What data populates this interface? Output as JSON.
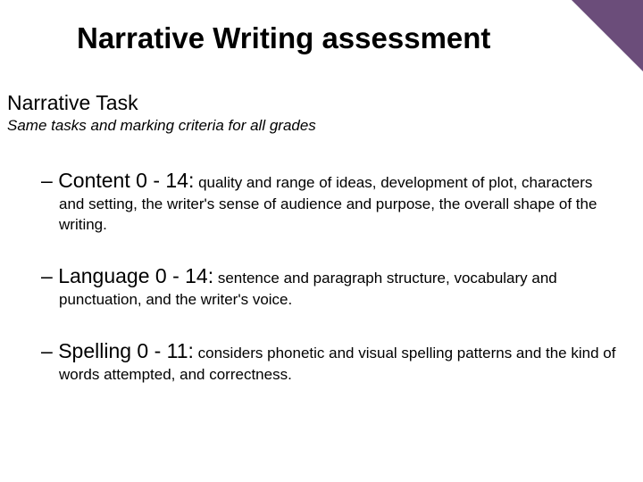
{
  "colors": {
    "background": "#ffffff",
    "text": "#000000",
    "corner": "#6b4d7a"
  },
  "typography": {
    "family": "Comic Sans MS",
    "title_size": 33,
    "subtitle_size": 23,
    "body_size": 17,
    "bullet_head_size": 23
  },
  "title": "Narrative Writing assessment",
  "subtitle": "Narrative Task",
  "subtitle_desc": "Same tasks and marking criteria for all grades",
  "bullets": [
    {
      "head": "Content 0 - 14:",
      "body": " quality and range of ideas, development of plot, characters and setting, the writer's sense of audience and purpose, the overall shape of the writing."
    },
    {
      "head": "Language 0 - 14:",
      "body": "  sentence and paragraph structure, vocabulary and punctuation, and the writer's voice."
    },
    {
      "head": "Spelling 0 - 11:",
      "body": "  considers phonetic and visual spelling patterns and the kind of words attempted, and correctness."
    }
  ]
}
